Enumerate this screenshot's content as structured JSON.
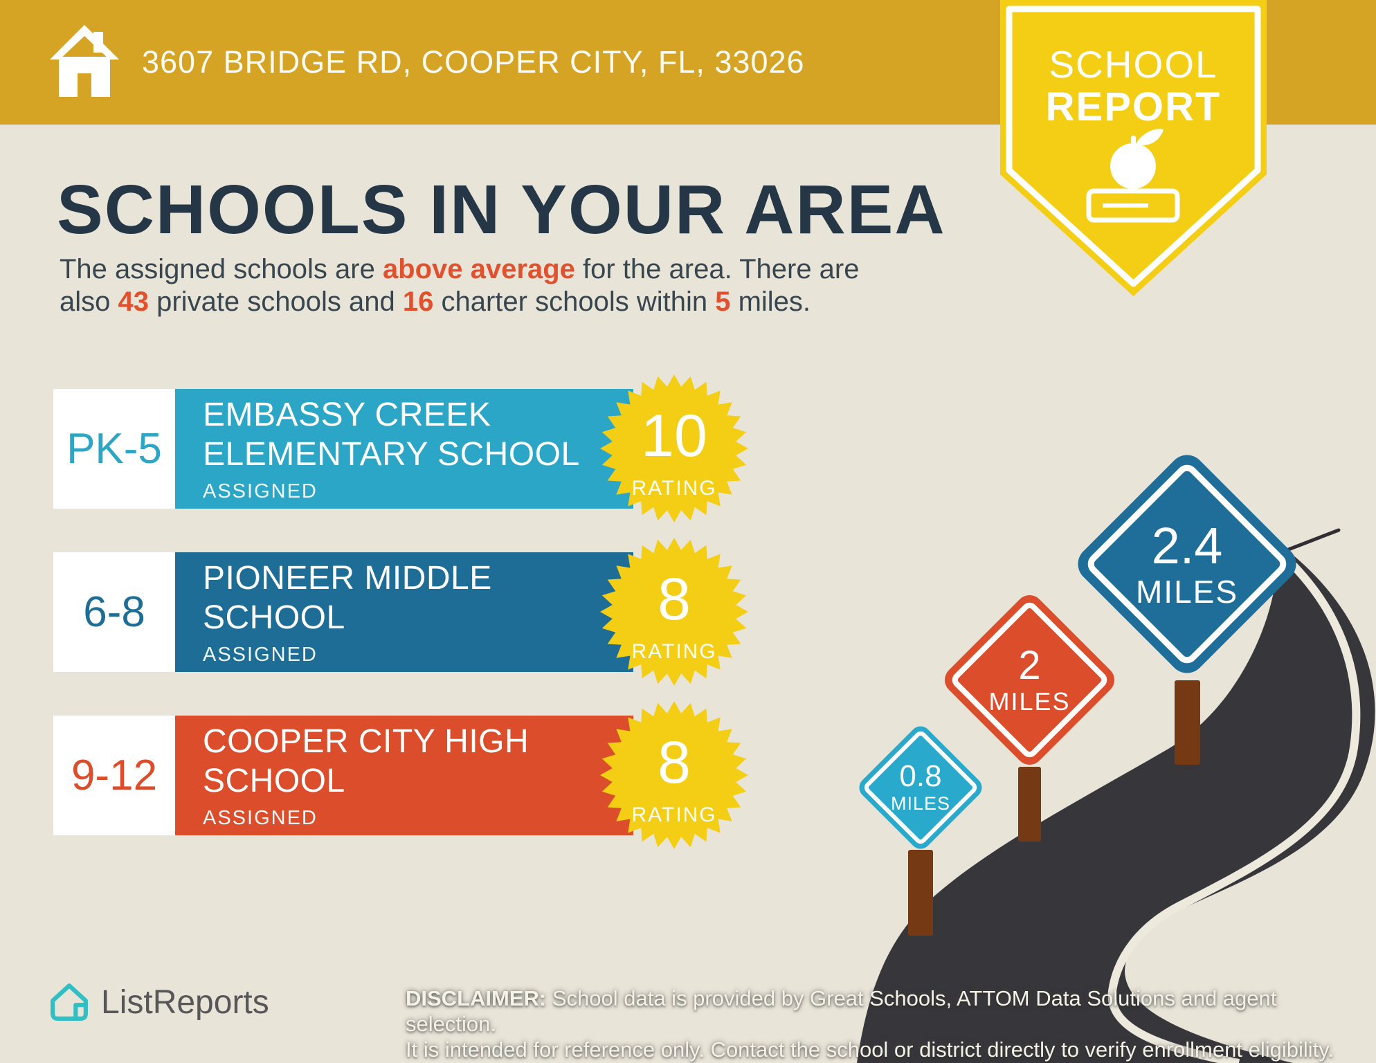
{
  "header": {
    "address": "3607 BRIDGE RD, COOPER CITY, FL, 33026",
    "badge_line1": "SCHOOL",
    "badge_line2": "REPORT"
  },
  "main": {
    "title": "SCHOOLS IN YOUR AREA",
    "subtitle": {
      "p1": "The assigned schools are ",
      "h1": "above average",
      "p2": " for the area. There are",
      "p3": "also ",
      "h2": "43",
      "p4": " private schools and ",
      "h3": "16",
      "p5": " charter schools within ",
      "h4": "5",
      "p6": " miles."
    }
  },
  "schools": [
    {
      "grades": "PK-5",
      "name_line1": "EMBASSY CREEK",
      "name_line2": "ELEMENTARY SCHOOL",
      "tag": "ASSIGNED",
      "rating": "10",
      "rating_label": "RATING",
      "color": "#2CA6C6"
    },
    {
      "grades": "6-8",
      "name_line1": "PIONEER MIDDLE",
      "name_line2": "SCHOOL",
      "tag": "ASSIGNED",
      "rating": "8",
      "rating_label": "RATING",
      "color": "#1E6D96"
    },
    {
      "grades": "9-12",
      "name_line1": "COOPER CITY HIGH",
      "name_line2": "SCHOOL",
      "tag": "ASSIGNED",
      "rating": "8",
      "rating_label": "RATING",
      "color": "#DC4D2B"
    }
  ],
  "signs": [
    {
      "distance": "2.4",
      "unit": "MILES",
      "color": "#1F6D99"
    },
    {
      "distance": "2",
      "unit": "MILES",
      "color": "#DC4D2B"
    },
    {
      "distance": "0.8",
      "unit": "MILES",
      "color": "#29A9CB"
    }
  ],
  "footer": {
    "logo_text": "ListReports",
    "disclaimer_bold": "DISCLAIMER:",
    "disclaimer_line1": " School data is provided by Great Schools, ATTOM Data Solutions and agent selection.",
    "disclaimer_line2": "It is intended for reference only. Contact the school or district directly to verify enrollment eligibility."
  },
  "colors": {
    "top_bar_gold": "#D5A425",
    "badge_yellow": "#F3CE14",
    "background_beige": "#E9E4D8",
    "headline_navy": "#253746",
    "accent_orange": "#E2512E",
    "road_charcoal": "#37373B",
    "post_brown": "#753A13",
    "logo_teal": "#2FBFC5"
  }
}
